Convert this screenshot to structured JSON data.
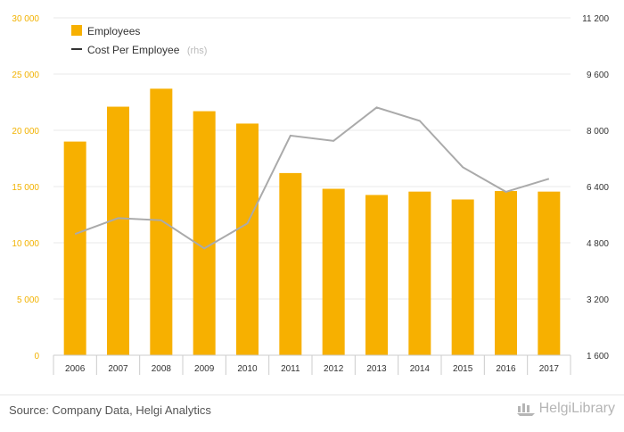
{
  "chart_data": {
    "type": "bar",
    "categories": [
      "2006",
      "2007",
      "2008",
      "2009",
      "2010",
      "2011",
      "2012",
      "2013",
      "2014",
      "2015",
      "2016",
      "2017"
    ],
    "series": [
      {
        "name": "Employees",
        "type": "bar",
        "axis": "left",
        "color": "#f7b000",
        "values": [
          19000,
          22100,
          23700,
          21700,
          20600,
          16200,
          14800,
          14250,
          14550,
          13850,
          14600,
          14550
        ]
      },
      {
        "name": "Cost Per Employee",
        "type": "line",
        "axis": "right",
        "color": "#aaaaaa",
        "values": [
          5050,
          5500,
          5440,
          4640,
          5350,
          7850,
          7700,
          8650,
          8270,
          6950,
          6250,
          6620
        ]
      }
    ],
    "ylim_left": [
      0,
      30000
    ],
    "ylim_right": [
      1600,
      11200
    ],
    "yticks_left": [
      "0",
      "5 000",
      "10 000",
      "15 000",
      "20 000",
      "25 000",
      "30 000"
    ],
    "yticks_right": [
      "1 600",
      "3 200",
      "4 800",
      "6 400",
      "8 000",
      "9 600",
      "11 200"
    ],
    "grid": true,
    "legend_position": "top-left",
    "legend": {
      "bar_label": "Employees",
      "line_label": "Cost Per Employee",
      "line_note": "(rhs)"
    }
  },
  "footer": {
    "source": "Source: Company Data, Helgi Analytics",
    "brand": "HelgiLibrary",
    "logo_icon": "ship-logo-icon"
  }
}
